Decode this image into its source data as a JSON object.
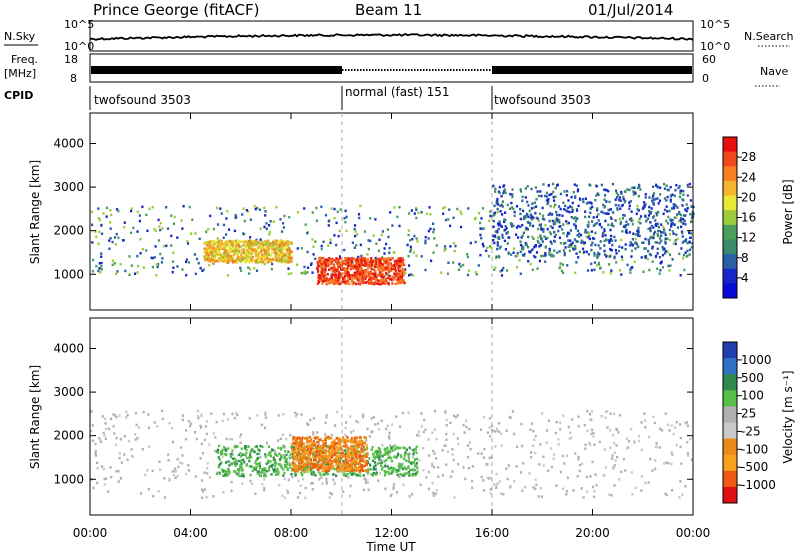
{
  "header": {
    "station": "Prince George (fitACF)",
    "beam": "Beam 11",
    "date": "01/Jul/2014"
  },
  "strips": {
    "nsky_label": "N.Sky",
    "nsearch_label": "N.Search",
    "noise_ticks_left": [
      "10^5",
      "10^0"
    ],
    "noise_ticks_right": [
      "10^5",
      "10^0"
    ],
    "freq_label_line1": "Freq.",
    "freq_label_line2": "[MHz]",
    "freq_ticks": [
      "18",
      "8"
    ],
    "nave_label": "Nave",
    "nave_ticks": [
      "60",
      "0"
    ],
    "cpid_label": "CPID",
    "cpid_segments": [
      "twofsound 3503",
      "normal (fast) 151",
      "twofsound 3503"
    ]
  },
  "panels": {
    "range_ticks": [
      "4000",
      "3000",
      "2000",
      "1000"
    ],
    "ylabel": "Slant Range [km]",
    "xlabel": "Time UT",
    "time_ticks": [
      "00:00",
      "04:00",
      "08:00",
      "12:00",
      "16:00",
      "20:00",
      "00:00"
    ]
  },
  "colorbars": {
    "power_label": "Power [dB]",
    "power_ticks": [
      "28",
      "24",
      "20",
      "16",
      "12",
      "8",
      "4"
    ],
    "power_colors": [
      "#e8100e",
      "#f04a1a",
      "#f77f22",
      "#f5b52e",
      "#e9e935",
      "#9ccc3a",
      "#4aa05a",
      "#3c8a6c",
      "#2a5ea6",
      "#1626c8",
      "#0a0ad8"
    ],
    "velocity_label": "Velocity [m s⁻¹]",
    "velocity_ticks": [
      "1000",
      "500",
      "100",
      "25",
      "-25",
      "-100",
      "-500",
      "-1000"
    ],
    "velocity_colors": [
      "#1f3fae",
      "#2f6fc4",
      "#2f8a4e",
      "#55c045",
      "#b0b0b0",
      "#c8c8c8",
      "#ec8a18",
      "#f7a21e",
      "#ee5a14",
      "#e01010"
    ]
  },
  "chart_data": [
    {
      "type": "heatmap",
      "title": "Power",
      "xlabel": "Time UT",
      "ylabel": "Slant Range [km]",
      "x_range_hours": [
        0,
        24
      ],
      "y_range_km": [
        180,
        4700
      ],
      "zlabel": "Power [dB]",
      "z_range": [
        0,
        30
      ],
      "scatter_regions": [
        {
          "t": [
            0,
            24
          ],
          "r": [
            1000,
            2600
          ],
          "level": "4-16 dB"
        },
        {
          "t": [
            4.5,
            8
          ],
          "r": [
            1300,
            1800
          ],
          "level": "16-26 dB"
        },
        {
          "t": [
            9,
            12.5
          ],
          "r": [
            800,
            1400
          ],
          "level": "26-30 dB"
        },
        {
          "t": [
            16,
            24
          ],
          "r": [
            1400,
            3100
          ],
          "level": "4-12 dB"
        }
      ]
    },
    {
      "type": "heatmap",
      "title": "Velocity",
      "xlabel": "Time UT",
      "ylabel": "Slant Range [km]",
      "x_range_hours": [
        0,
        24
      ],
      "y_range_km": [
        180,
        4700
      ],
      "zlabel": "Velocity [m s⁻¹]",
      "z_range": [
        -1000,
        1000
      ],
      "scatter_regions": [
        {
          "t": [
            0,
            24
          ],
          "r": [
            600,
            2600
          ],
          "level": "-25 to 25 (ground scatter)"
        },
        {
          "t": [
            5,
            13
          ],
          "r": [
            1100,
            1800
          ],
          "level": "100 to 500"
        },
        {
          "t": [
            8,
            11
          ],
          "r": [
            1200,
            2000
          ],
          "level": "-100 to -500"
        }
      ]
    }
  ]
}
